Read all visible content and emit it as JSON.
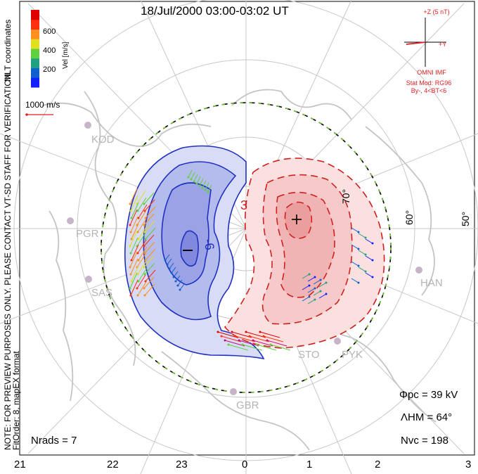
{
  "title": "18/Jul/2000 03:00-03:02 UT",
  "side_notes": {
    "coords": "MLT coordinates",
    "preview": "NOTE: FOR PREVIEW PURPOSES ONLY. PLEASE CONTACT VT-SD STAFF FOR VERIFICATION.",
    "fitorder": "FitOrder: 8, mapEX format"
  },
  "colorbar": {
    "label": "Vel [m/s]",
    "ticks": [
      "200",
      "400",
      "600"
    ],
    "colors": [
      "#1020ff",
      "#1060d0",
      "#20a080",
      "#60d040",
      "#e0e020",
      "#ff9020",
      "#ff3010",
      "#e00000"
    ]
  },
  "vector_scale": "1000 m/s",
  "imf": {
    "z_label": "+Z (5 nT)",
    "y_label": "+Y",
    "source": "OMNI IMF",
    "model": "Stat Mod: RG96",
    "condition": "By-, 4<BT<6"
  },
  "lat_labels": [
    "70°",
    "60°",
    "50°"
  ],
  "mlt_ticks": [
    "21",
    "22",
    "23",
    "0",
    "1",
    "2",
    "3"
  ],
  "stations": [
    "KOD",
    "PGR",
    "SAS",
    "STO",
    "PYK",
    "HAN",
    "GBR"
  ],
  "contour_labels": [
    "-6",
    "3"
  ],
  "stats": {
    "phi_pc": "Φpc = 39 kV",
    "lambda_hm": "ΛHM = 64°",
    "n_vc": "Nvc = 198",
    "n_rads": "Nrads = 7"
  },
  "colors": {
    "negative_cell": "#2030c0",
    "positive_cell": "#d02020",
    "boundary": "#70c030",
    "grid": "#c8c8c8",
    "coastline": "#c0c0c0"
  }
}
